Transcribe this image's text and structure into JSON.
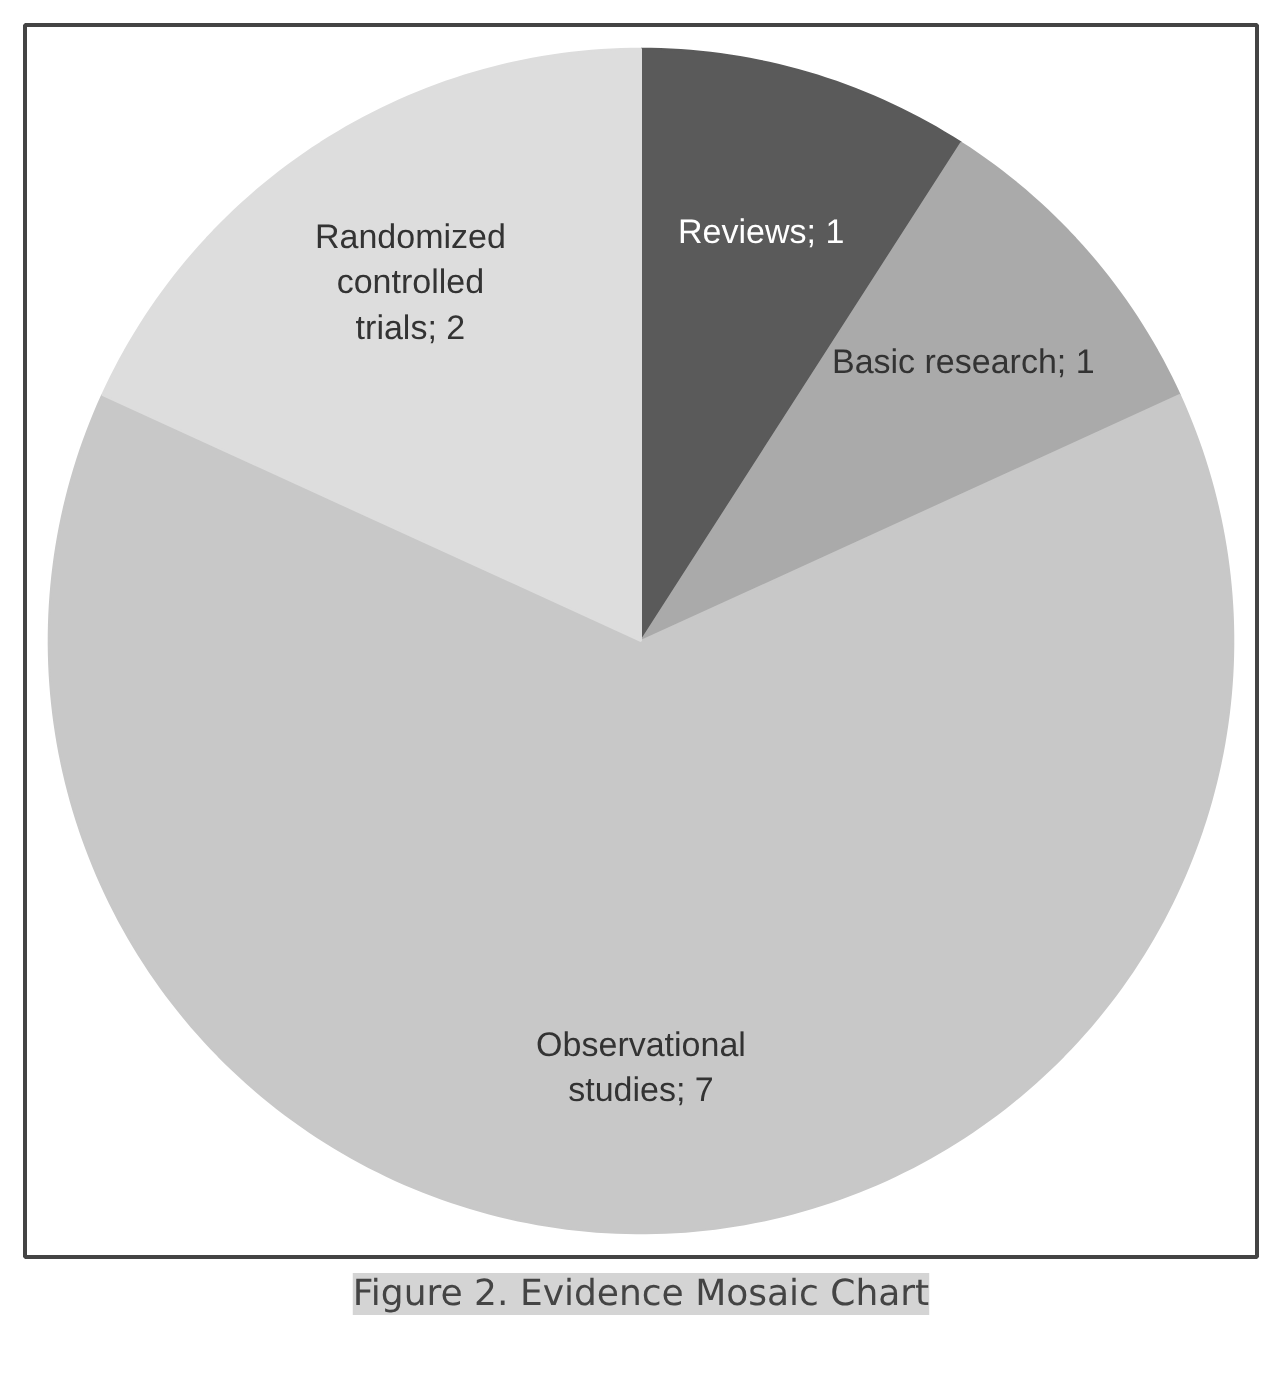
{
  "chart_data": {
    "type": "pie",
    "title": "Figure 2. Evidence Mosaic Chart",
    "categories": [
      "Reviews",
      "Basic research",
      "Observational studies",
      "Randomized controlled trials"
    ],
    "values": [
      1,
      1,
      7,
      2
    ],
    "colors": [
      "#5a5a5a",
      "#aaaaaa",
      "#c8c8c8",
      "#dddddd"
    ],
    "value_labels": [
      "; 1",
      "; 1",
      "; 7",
      "; 2"
    ]
  }
}
